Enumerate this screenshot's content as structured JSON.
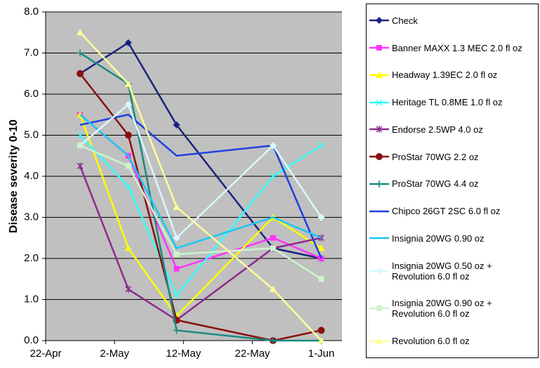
{
  "chart_data": {
    "type": "line",
    "y_label": "Disease severity 0-10",
    "x": [
      "27-Apr",
      "4-May",
      "11-May",
      "25-May",
      "1-Jun"
    ],
    "xlim": [
      "22-Apr",
      "4-Jun"
    ],
    "xticks": [
      "22-Apr",
      "2-May",
      "12-May",
      "22-May",
      "1-Jun"
    ],
    "ylim": [
      0,
      8
    ],
    "yticks": [
      {
        "value": 0,
        "label": "0.0"
      },
      {
        "value": 1,
        "label": "1.0"
      },
      {
        "value": 2,
        "label": "2.0"
      },
      {
        "value": 3,
        "label": "3.0"
      },
      {
        "value": 4,
        "label": "4.0"
      },
      {
        "value": 5,
        "label": "5.0"
      },
      {
        "value": 6,
        "label": "6.0"
      },
      {
        "value": 7,
        "label": "7.0"
      },
      {
        "value": 8,
        "label": "8.0"
      }
    ],
    "grid": true,
    "series": [
      {
        "name": "Check",
        "color": "#1a237e",
        "marker": "diamond",
        "values": [
          6.5,
          7.25,
          5.25,
          2.25,
          2.0
        ]
      },
      {
        "name": "Banner MAXX 1.3 MEC 2.0 fl oz",
        "color": "#ff33ff",
        "marker": "square",
        "values": [
          5.5,
          4.5,
          1.75,
          2.5,
          2.0
        ]
      },
      {
        "name": "Headway 1.39EC 2.0 fl oz",
        "color": "#ffff00",
        "marker": "triangle",
        "values": [
          5.5,
          2.25,
          0.6,
          3.0,
          2.25
        ]
      },
      {
        "name": "Heritage TL 0.8ME 1.0 fl oz",
        "color": "#33ffff",
        "marker": "x",
        "values": [
          5.0,
          3.75,
          1.1,
          4.0,
          4.75
        ]
      },
      {
        "name": "Endorse 2.5WP 4.0 oz",
        "color": "#8e2a8e",
        "marker": "star",
        "values": [
          4.25,
          1.25,
          0.5,
          2.25,
          2.5
        ]
      },
      {
        "name": "ProStar 70WG 2.2 oz",
        "color": "#8b1010",
        "marker": "circle",
        "values": [
          6.5,
          5.0,
          0.5,
          0.0,
          0.25
        ]
      },
      {
        "name": "ProStar 70WG 4.4 oz",
        "color": "#1a8a80",
        "marker": "plus",
        "values": [
          7.0,
          6.25,
          0.25,
          0.0,
          0.0
        ]
      },
      {
        "name": "Chipco 26GT 2SC 6.0 fl oz",
        "color": "#1f3fe0",
        "marker": "none",
        "values": [
          5.25,
          5.5,
          4.5,
          4.75,
          2.0
        ]
      },
      {
        "name": "Insignia 20WG 0.90 oz",
        "color": "#19c8f0",
        "marker": "none",
        "values": [
          5.5,
          4.5,
          2.25,
          3.0,
          2.5
        ]
      },
      {
        "name": "Insignia 20WG 0.50 oz +\nRevolution 6.0 fl oz",
        "color": "#d8f8ff",
        "marker": "diamond",
        "values": [
          4.75,
          5.75,
          2.5,
          4.75,
          3.0
        ]
      },
      {
        "name": "Insignia 20WG 0.90 oz +\nRevolution 6.0 fl oz",
        "color": "#ccf5cc",
        "marker": "square",
        "values": [
          4.75,
          4.25,
          2.1,
          2.25,
          1.5
        ]
      },
      {
        "name": "Revolution 6.0 fl oz",
        "color": "#ffff99",
        "marker": "triangle",
        "values": [
          7.5,
          6.25,
          3.25,
          1.25,
          0.0
        ]
      }
    ]
  }
}
